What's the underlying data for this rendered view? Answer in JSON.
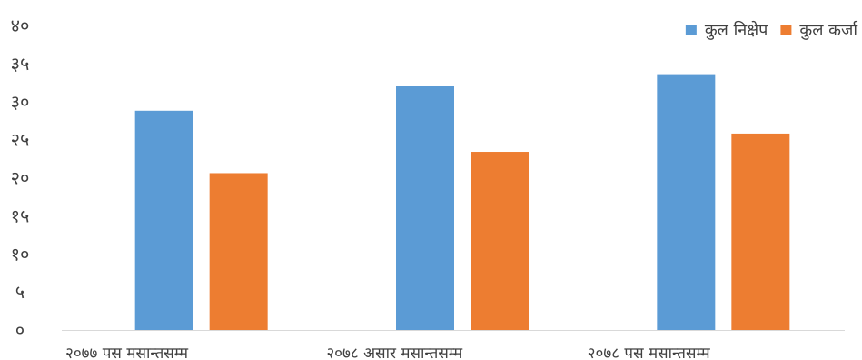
{
  "chart_data": {
    "type": "bar",
    "title": "",
    "xlabel": "",
    "ylabel": "",
    "categories": [
      "२०७७ पस मसान्तसम्म",
      "२०७८ असार मसान्तसम्म",
      "२०७८ पस मसान्तसम्म"
    ],
    "series": [
      {
        "name": "कुल निक्षेप",
        "values": [
          28.8,
          32.0,
          33.6
        ],
        "color": "#5B9BD5"
      },
      {
        "name": "कुल कर्जा",
        "values": [
          20.6,
          23.4,
          25.8
        ],
        "color": "#ED7D31"
      }
    ],
    "ylim": [
      0,
      40
    ],
    "yticks": [
      0,
      5,
      10,
      15,
      20,
      25,
      30,
      35,
      40
    ],
    "ytick_labels": [
      "०",
      "५",
      "१०",
      "१५",
      "२०",
      "२५",
      "३०",
      "३५",
      "४०"
    ],
    "grid": false,
    "legend_position": "top-right"
  }
}
